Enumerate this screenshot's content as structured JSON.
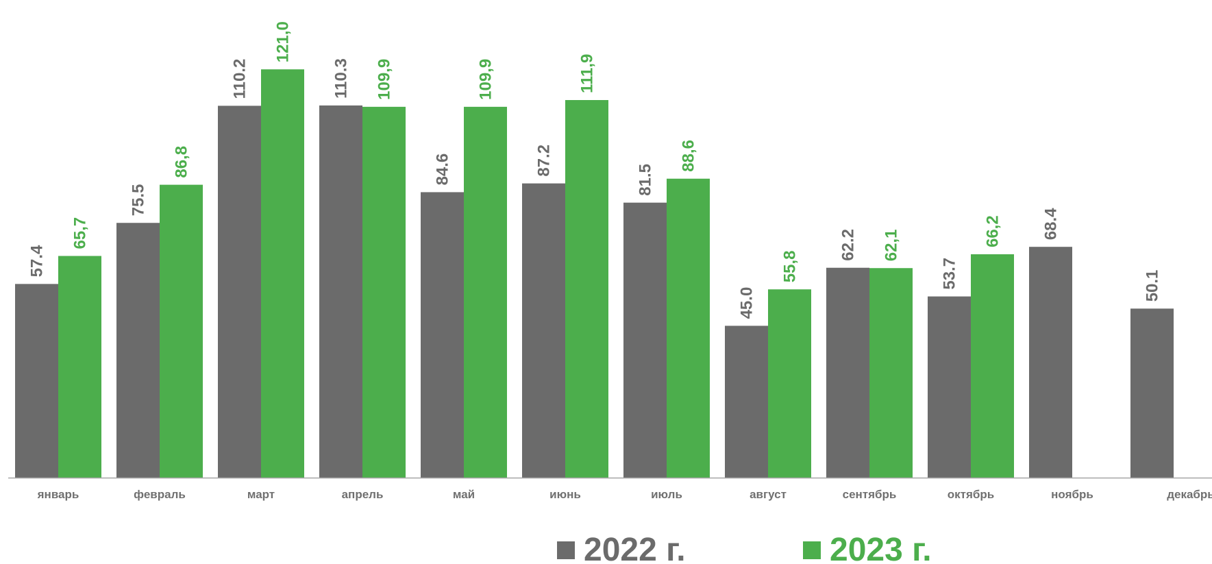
{
  "chart_data": {
    "type": "bar",
    "categories": [
      "январь",
      "февраль",
      "март",
      "апрель",
      "май",
      "июнь",
      "июль",
      "август",
      "сентябрь",
      "октябрь",
      "ноябрь",
      "декабрь"
    ],
    "series": [
      {
        "name": "2022 г.",
        "color": "#6b6b6b",
        "values": [
          57.4,
          75.5,
          110.2,
          110.3,
          84.6,
          87.2,
          81.5,
          45.0,
          62.2,
          53.7,
          68.4,
          50.1
        ],
        "labels": [
          "57.4",
          "75.5",
          "110.2",
          "110.3",
          "84.6",
          "87.2",
          "81.5",
          "45.0",
          "62.2",
          "53.7",
          "68.4",
          "50.1"
        ]
      },
      {
        "name": "2023 г.",
        "color": "#4cae4c",
        "values": [
          65.7,
          86.8,
          121.0,
          109.9,
          109.9,
          111.9,
          88.6,
          55.8,
          62.1,
          66.2,
          null,
          null
        ],
        "labels": [
          "65,7",
          "86,8",
          "121,0",
          "109,9",
          "109,9",
          "111,9",
          "88,6",
          "55,8",
          "62,1",
          "66,2",
          null,
          null
        ]
      }
    ],
    "axis_color": "#a6a6a6",
    "ylim": [
      0,
      121.0
    ],
    "grid": false,
    "legend_position": "bottom-center",
    "title": "",
    "xlabel": "",
    "ylabel": ""
  }
}
